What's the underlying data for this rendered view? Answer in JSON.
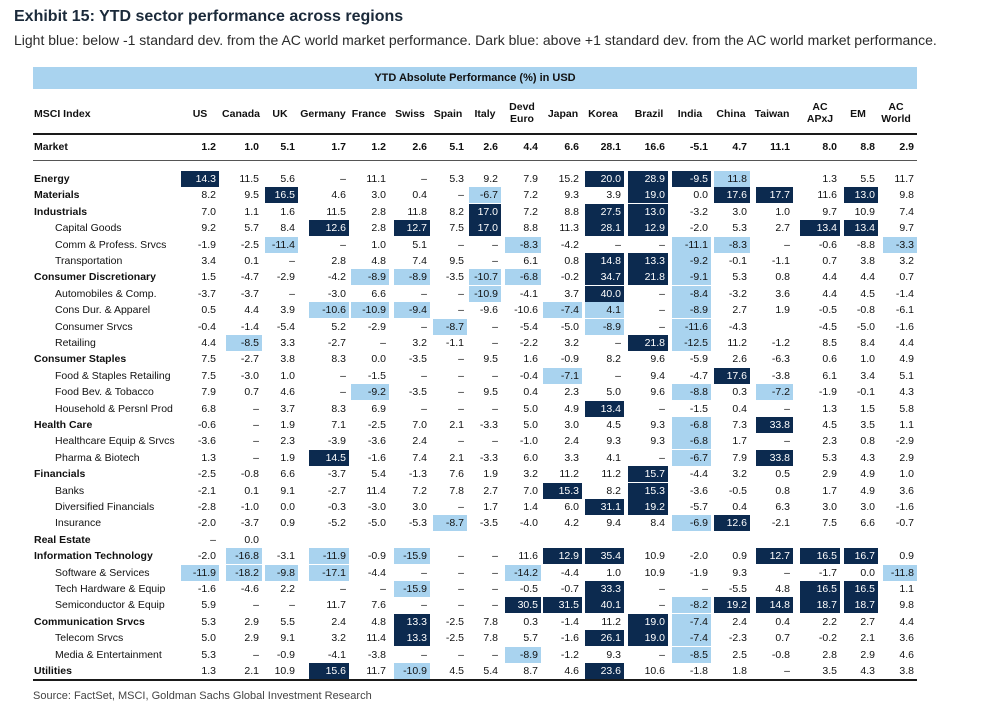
{
  "title": "Exhibit 15: YTD sector performance across regions",
  "subtitle": "Light blue: below -1 standard dev. from the AC world market performance. Dark blue: above +1 standard dev. from the AC world market performance.",
  "source": "Source: FactSet, MSCI, Goldman Sachs Global Investment Research",
  "colors": {
    "banner": "#a9d3ef",
    "light_blue": "#a9d3ef",
    "dark_blue": "#0c2a4f"
  },
  "chart_data": {
    "type": "table",
    "title": "YTD Absolute Performance (%) in USD",
    "index_header": "MSCI Index",
    "columns": [
      "US",
      "Canada",
      "UK",
      "Germany",
      "France",
      "Swiss",
      "Spain",
      "Italy",
      "Devd Euro",
      "Japan",
      "Korea",
      "Brazil",
      "India",
      "China",
      "Taiwan",
      "AC APxJ",
      "EM",
      "AC World"
    ],
    "rows": [
      {
        "label": "Market",
        "level": 0,
        "values": [
          "1.2",
          "1.0",
          "5.1",
          "1.7",
          "1.2",
          "2.6",
          "5.1",
          "2.6",
          "4.4",
          "6.6",
          "28.1",
          "16.6",
          "-5.1",
          "4.7",
          "11.1",
          "8.0",
          "8.8",
          "2.9"
        ],
        "hl": ""
      },
      {
        "label": "Energy",
        "level": 0,
        "values": [
          "14.3",
          "11.5",
          "5.6",
          "–",
          "11.1",
          "–",
          "5.3",
          "9.2",
          "7.9",
          "15.2",
          "20.0",
          "28.9",
          "-9.5",
          "11.8",
          "",
          "1.3",
          "5.5",
          "11.7"
        ],
        "hl": "H.........HHHL....."
      },
      {
        "label": "Materials",
        "level": 0,
        "values": [
          "8.2",
          "9.5",
          "16.5",
          "4.6",
          "3.0",
          "0.4",
          "–",
          "-6.7",
          "7.2",
          "9.3",
          "3.9",
          "19.0",
          "0.0",
          "17.6",
          "17.7",
          "11.6",
          "13.0",
          "9.8"
        ],
        "hl": "..H....L...H.HH.H."
      },
      {
        "label": "Industrials",
        "level": 0,
        "values": [
          "7.0",
          "1.1",
          "1.6",
          "11.5",
          "2.8",
          "11.8",
          "8.2",
          "17.0",
          "7.2",
          "8.8",
          "27.5",
          "13.0",
          "-3.2",
          "3.0",
          "1.0",
          "9.7",
          "10.9",
          "7.4"
        ],
        "hl": ".......H..HH......"
      },
      {
        "label": "Capital Goods",
        "level": 1,
        "values": [
          "9.2",
          "5.7",
          "8.4",
          "12.6",
          "2.8",
          "12.7",
          "7.5",
          "17.0",
          "8.8",
          "11.3",
          "28.1",
          "12.9",
          "-2.0",
          "5.3",
          "2.7",
          "13.4",
          "13.4",
          "9.7"
        ],
        "hl": "...H.H.H..HH...HH."
      },
      {
        "label": "Comm & Profess. Srvcs",
        "level": 1,
        "values": [
          "-1.9",
          "-2.5",
          "-11.4",
          "–",
          "1.0",
          "5.1",
          "–",
          "–",
          "-8.3",
          "-4.2",
          "–",
          "–",
          "-11.1",
          "-8.3",
          "–",
          "-0.6",
          "-8.8",
          "-3.3"
        ],
        "hl": "..L.....L...LL...L."
      },
      {
        "label": "Transportation",
        "level": 1,
        "values": [
          "3.4",
          "0.1",
          "–",
          "2.8",
          "4.8",
          "7.4",
          "9.5",
          "–",
          "6.1",
          "0.8",
          "14.8",
          "13.3",
          "-9.2",
          "-0.1",
          "-1.1",
          "0.7",
          "3.8",
          "3.2"
        ],
        "hl": "..........HHL......"
      },
      {
        "label": "Consumer Discretionary",
        "level": 0,
        "values": [
          "1.5",
          "-4.7",
          "-2.9",
          "-4.2",
          "-8.9",
          "-8.9",
          "-3.5",
          "-10.7",
          "-6.8",
          "-0.2",
          "34.7",
          "21.8",
          "-9.1",
          "5.3",
          "0.8",
          "4.4",
          "4.4",
          "0.7"
        ],
        "hl": "....LL.LL.HHL....."
      },
      {
        "label": "Automobiles & Comp.",
        "level": 1,
        "values": [
          "-3.7",
          "-3.7",
          "–",
          "-3.0",
          "6.6",
          "–",
          "–",
          "-10.9",
          "-4.1",
          "3.7",
          "40.0",
          "–",
          "-8.4",
          "-3.2",
          "3.6",
          "4.4",
          "4.5",
          "-1.4"
        ],
        "hl": ".......L..H.L....."
      },
      {
        "label": "Cons Dur. & Apparel",
        "level": 1,
        "values": [
          "0.5",
          "4.4",
          "3.9",
          "-10.6",
          "-10.9",
          "-9.4",
          "–",
          "-9.6",
          "-10.6",
          "-7.4",
          "4.1",
          "–",
          "-8.9",
          "2.7",
          "1.9",
          "-0.5",
          "-0.8",
          "-6.1"
        ],
        "hl": "...LLL...LL.L....."
      },
      {
        "label": "Consumer Srvcs",
        "level": 1,
        "values": [
          "-0.4",
          "-1.4",
          "-5.4",
          "5.2",
          "-2.9",
          "–",
          "-8.7",
          "–",
          "-5.4",
          "-5.0",
          "-8.9",
          "–",
          "-11.6",
          "-4.3",
          "",
          "-4.5",
          "-5.0",
          "-1.6"
        ],
        "hl": "......L...L.L....."
      },
      {
        "label": "Retailing",
        "level": 1,
        "values": [
          "4.4",
          "-8.5",
          "3.3",
          "-2.7",
          "–",
          "3.2",
          "-1.1",
          "–",
          "-2.2",
          "3.2",
          "–",
          "21.8",
          "-12.5",
          "11.2",
          "-1.2",
          "8.5",
          "8.4",
          "4.4"
        ],
        "hl": ".L.........HL....."
      },
      {
        "label": "Consumer Staples",
        "level": 0,
        "values": [
          "7.5",
          "-2.7",
          "3.8",
          "8.3",
          "0.0",
          "-3.5",
          "–",
          "9.5",
          "1.6",
          "-0.9",
          "8.2",
          "9.6",
          "-5.9",
          "2.6",
          "-6.3",
          "0.6",
          "1.0",
          "4.9"
        ],
        "hl": ".................."
      },
      {
        "label": "Food & Staples Retailing",
        "level": 1,
        "values": [
          "7.5",
          "-3.0",
          "1.0",
          "–",
          "-1.5",
          "–",
          "–",
          "–",
          "-0.4",
          "-7.1",
          "–",
          "9.4",
          "-4.7",
          "17.6",
          "-3.8",
          "6.1",
          "3.4",
          "5.1"
        ],
        "hl": ".........L...H...."
      },
      {
        "label": "Food Bev. & Tobacco",
        "level": 1,
        "values": [
          "7.9",
          "0.7",
          "4.6",
          "–",
          "-9.2",
          "-3.5",
          "–",
          "9.5",
          "0.4",
          "2.3",
          "5.0",
          "9.6",
          "-8.8",
          "0.3",
          "-7.2",
          "-1.9",
          "-0.1",
          "4.3"
        ],
        "hl": "....L.......L.L..."
      },
      {
        "label": "Household & Persnl Prod",
        "level": 1,
        "values": [
          "6.8",
          "–",
          "3.7",
          "8.3",
          "6.9",
          "–",
          "–",
          "–",
          "5.0",
          "4.9",
          "13.4",
          "–",
          "-1.5",
          "0.4",
          "–",
          "1.3",
          "1.5",
          "5.8"
        ],
        "hl": "..........H......."
      },
      {
        "label": "Health Care",
        "level": 0,
        "values": [
          "-0.6",
          "–",
          "1.9",
          "7.1",
          "-2.5",
          "7.0",
          "2.1",
          "-3.3",
          "5.0",
          "3.0",
          "4.5",
          "9.3",
          "-6.8",
          "7.3",
          "33.8",
          "4.5",
          "3.5",
          "1.1"
        ],
        "hl": "............L.H..."
      },
      {
        "label": "Healthcare Equip & Srvcs",
        "level": 1,
        "values": [
          "-3.6",
          "–",
          "2.3",
          "-3.9",
          "-3.6",
          "2.4",
          "–",
          "–",
          "-1.0",
          "2.4",
          "9.3",
          "9.3",
          "-6.8",
          "1.7",
          "–",
          "2.3",
          "0.8",
          "-2.9"
        ],
        "hl": "............L....."
      },
      {
        "label": "Pharma & Biotech",
        "level": 1,
        "values": [
          "1.3",
          "–",
          "1.9",
          "14.5",
          "-1.6",
          "7.4",
          "2.1",
          "-3.3",
          "6.0",
          "3.3",
          "4.1",
          "–",
          "-6.7",
          "7.9",
          "33.8",
          "5.3",
          "4.3",
          "2.9"
        ],
        "hl": "...H........L.H..."
      },
      {
        "label": "Financials",
        "level": 0,
        "values": [
          "-2.5",
          "-0.8",
          "6.6",
          "-3.7",
          "5.4",
          "-1.3",
          "7.6",
          "1.9",
          "3.2",
          "11.2",
          "11.2",
          "15.7",
          "-4.4",
          "3.2",
          "0.5",
          "2.9",
          "4.9",
          "1.0"
        ],
        "hl": "...........H......"
      },
      {
        "label": "Banks",
        "level": 1,
        "values": [
          "-2.1",
          "0.1",
          "9.1",
          "-2.7",
          "11.4",
          "7.2",
          "7.8",
          "2.7",
          "7.0",
          "15.3",
          "8.2",
          "15.3",
          "-3.6",
          "-0.5",
          "0.8",
          "1.7",
          "4.9",
          "3.6"
        ],
        "hl": ".........H.H......"
      },
      {
        "label": "Diversified Financials",
        "level": 1,
        "values": [
          "-2.8",
          "-1.0",
          "0.0",
          "-0.3",
          "-3.0",
          "3.0",
          "–",
          "1.7",
          "1.4",
          "6.0",
          "31.1",
          "19.2",
          "-5.7",
          "0.4",
          "6.3",
          "3.0",
          "3.0",
          "-1.6"
        ],
        "hl": "..........HH......"
      },
      {
        "label": "Insurance",
        "level": 1,
        "values": [
          "-2.0",
          "-3.7",
          "0.9",
          "-5.2",
          "-5.0",
          "-5.3",
          "-8.7",
          "-3.5",
          "-4.0",
          "4.2",
          "9.4",
          "8.4",
          "-6.9",
          "12.6",
          "-2.1",
          "7.5",
          "6.6",
          "-0.7"
        ],
        "hl": "......L.....LH...."
      },
      {
        "label": "Real Estate",
        "level": 0,
        "values": [
          "–",
          "0.0",
          "",
          "",
          "",
          "",
          "",
          "",
          "",
          "",
          "",
          "",
          "",
          "",
          "",
          "",
          "",
          ""
        ],
        "hl": ".................."
      },
      {
        "label": "Information Technology",
        "level": 0,
        "values": [
          "-2.0",
          "-16.8",
          "-3.1",
          "-11.9",
          "-0.9",
          "-15.9",
          "–",
          "–",
          "11.6",
          "12.9",
          "35.4",
          "10.9",
          "-2.0",
          "0.9",
          "12.7",
          "16.5",
          "16.7",
          "0.9"
        ],
        "hl": ".L.L.L...HH...HHH."
      },
      {
        "label": "Software & Services",
        "level": 1,
        "values": [
          "-11.9",
          "-18.2",
          "-9.8",
          "-17.1",
          "-4.4",
          "–",
          "–",
          "–",
          "-14.2",
          "-4.4",
          "1.0",
          "10.9",
          "-1.9",
          "9.3",
          "–",
          "-1.7",
          "0.0",
          "-11.8"
        ],
        "hl": "LLLL....L........L"
      },
      {
        "label": "Tech Hardware & Equip",
        "level": 1,
        "values": [
          "-1.6",
          "-4.6",
          "2.2",
          "–",
          "–",
          "-15.9",
          "–",
          "–",
          "-0.5",
          "-0.7",
          "33.3",
          "–",
          "–",
          "-5.5",
          "4.8",
          "16.5",
          "16.5",
          "1.1"
        ],
        "hl": ".....L....H....HH."
      },
      {
        "label": "Semiconductor & Equip",
        "level": 1,
        "values": [
          "5.9",
          "–",
          "–",
          "11.7",
          "7.6",
          "–",
          "–",
          "–",
          "30.5",
          "31.5",
          "40.1",
          "–",
          "-8.2",
          "19.2",
          "14.8",
          "18.7",
          "18.7",
          "9.8"
        ],
        "hl": "........HHH.LHHHH."
      },
      {
        "label": "Communication Srvcs",
        "level": 0,
        "values": [
          "5.3",
          "2.9",
          "5.5",
          "2.4",
          "4.8",
          "13.3",
          "-2.5",
          "7.8",
          "0.3",
          "-1.4",
          "11.2",
          "19.0",
          "-7.4",
          "2.4",
          "0.4",
          "2.2",
          "2.7",
          "4.4"
        ],
        "hl": ".....H.....HL....."
      },
      {
        "label": "Telecom Srvcs",
        "level": 1,
        "values": [
          "5.0",
          "2.9",
          "9.1",
          "3.2",
          "11.4",
          "13.3",
          "-2.5",
          "7.8",
          "5.7",
          "-1.6",
          "26.1",
          "19.0",
          "-7.4",
          "-2.3",
          "0.7",
          "-0.2",
          "2.1",
          "3.6"
        ],
        "hl": ".....H....HHL....."
      },
      {
        "label": "Media & Entertainment",
        "level": 1,
        "values": [
          "5.3",
          "–",
          "-0.9",
          "-4.1",
          "-3.8",
          "–",
          "–",
          "–",
          "-8.9",
          "-1.2",
          "9.3",
          "–",
          "-8.5",
          "2.5",
          "-0.8",
          "2.8",
          "2.9",
          "4.6"
        ],
        "hl": "........L...L....."
      },
      {
        "label": "Utilities",
        "level": 0,
        "values": [
          "1.3",
          "2.1",
          "10.9",
          "15.6",
          "11.7",
          "-10.9",
          "4.5",
          "5.4",
          "8.7",
          "4.6",
          "23.6",
          "10.6",
          "-1.8",
          "1.8",
          "–",
          "3.5",
          "4.3",
          "3.8"
        ],
        "hl": "...H.L....H......."
      }
    ]
  }
}
